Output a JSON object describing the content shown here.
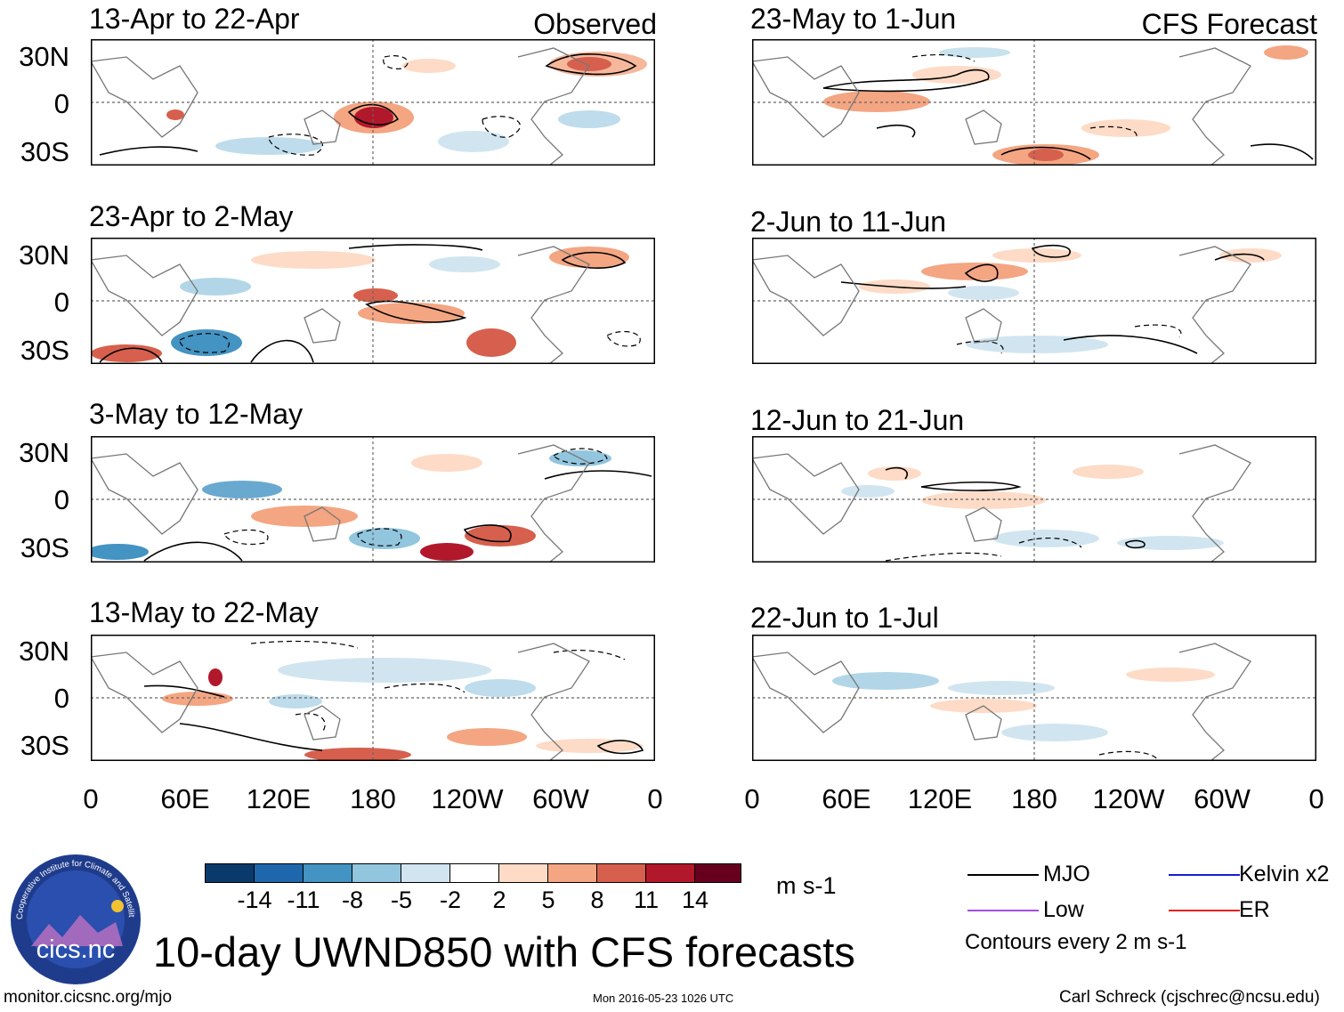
{
  "headers": {
    "left": "Observed",
    "right": "CFS Forecast"
  },
  "panels_left": [
    {
      "title": "13-Apr to 22-Apr"
    },
    {
      "title": "23-Apr to 2-May"
    },
    {
      "title": "3-May to 12-May"
    },
    {
      "title": "13-May to 22-May"
    }
  ],
  "panels_right": [
    {
      "title": "23-May to 1-Jun"
    },
    {
      "title": "2-Jun to 11-Jun"
    },
    {
      "title": "12-Jun to 21-Jun"
    },
    {
      "title": "22-Jun to 1-Jul"
    }
  ],
  "lat_labels": [
    "30N",
    "0",
    "30S"
  ],
  "lon_labels": [
    "0",
    "60E",
    "120E",
    "180",
    "120W",
    "60W",
    "0"
  ],
  "colorbar": {
    "colors": [
      "#0a3a6b",
      "#1f67ad",
      "#4393c3",
      "#92c5de",
      "#d1e5f0",
      "#ffffff",
      "#fddbc7",
      "#f4a582",
      "#d6604d",
      "#b2182b",
      "#67001f"
    ],
    "labels": [
      "-14",
      "-11",
      "-8",
      "-5",
      "-2",
      "2",
      "5",
      "8",
      "11",
      "14"
    ],
    "unit": "m s-1"
  },
  "legend": {
    "mjo": {
      "label": "MJO",
      "color": "#000000"
    },
    "kelvin": {
      "label": "Kelvin x2",
      "color": "#1a1ad8"
    },
    "low": {
      "label": "Low",
      "color": "#a64ce0"
    },
    "er": {
      "label": "ER",
      "color": "#e02020"
    },
    "contours": "Contours every 2 m s-1"
  },
  "logo_text": "cics.nc",
  "logo_ring": "Cooperative Institute for Climate and Satellites",
  "main_title": "10-day UWND850 with CFS forecasts",
  "footer": {
    "url": "monitor.cicsnc.org/mjo",
    "timestamp": "Mon 2016-05-23 1026 UTC",
    "author": "Carl Schreck (cjschrec@ncsu.edu)"
  }
}
